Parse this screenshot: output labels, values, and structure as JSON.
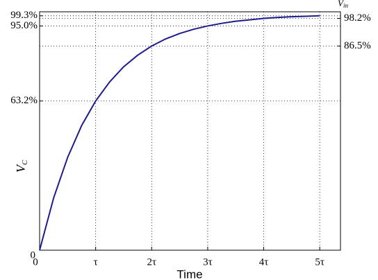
{
  "chart_data": {
    "type": "line",
    "x": [
      0,
      0.25,
      0.5,
      0.75,
      1,
      1.25,
      1.5,
      1.75,
      2,
      2.25,
      2.5,
      2.75,
      3,
      3.25,
      3.5,
      3.75,
      4,
      4.25,
      4.5,
      4.75,
      5
    ],
    "values": [
      0,
      22.1,
      39.3,
      52.8,
      63.2,
      71.3,
      77.7,
      82.6,
      86.5,
      89.5,
      91.8,
      93.6,
      95.0,
      96.1,
      97.0,
      97.6,
      98.2,
      98.6,
      98.9,
      99.1,
      99.3
    ],
    "color": "#1c1c8e",
    "xlabel": "Time",
    "ylabel": "V",
    "ylabel_sub": "C",
    "y2label": "V",
    "y2label_sub": "in",
    "xlim": [
      0,
      5.37
    ],
    "xticks": [
      0,
      {
        "value": 1,
        "label": "τ"
      },
      {
        "value": 2,
        "label": "2τ"
      },
      {
        "value": 3,
        "label": "3τ"
      },
      {
        "value": 4,
        "label": "4τ"
      },
      {
        "value": 5,
        "label": "5τ"
      }
    ],
    "ylim": [
      0,
      101
    ],
    "yticks": [
      0,
      {
        "value": 63.2,
        "label": "63.2%"
      },
      {
        "value": 95.0,
        "label": "95.0%"
      },
      {
        "value": 99.3,
        "label": "99.3%"
      }
    ],
    "y2lim": [
      0,
      101
    ],
    "y2ticks": [
      {
        "value": 86.5,
        "label": "86.5%"
      },
      {
        "value": 98.2,
        "label": "98.2%"
      }
    ],
    "grid": true
  }
}
